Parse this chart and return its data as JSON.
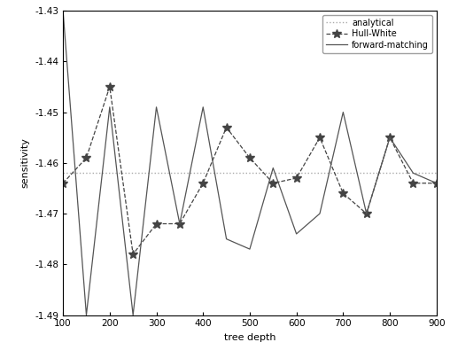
{
  "analytical_value": -1.462,
  "x_hw": [
    100,
    150,
    200,
    250,
    300,
    350,
    400,
    450,
    500,
    550,
    600,
    650,
    700,
    750,
    800,
    850,
    900
  ],
  "y_hw": [
    -1.464,
    -1.459,
    -1.445,
    -1.478,
    -1.472,
    -1.472,
    -1.464,
    -1.453,
    -1.459,
    -1.464,
    -1.463,
    -1.455,
    -1.466,
    -1.47,
    -1.455,
    -1.464,
    -1.464
  ],
  "x_fm": [
    100,
    150,
    200,
    250,
    300,
    350,
    400,
    450,
    500,
    550,
    600,
    650,
    700,
    750,
    800,
    850,
    900
  ],
  "y_fm": [
    -1.43,
    -1.49,
    -1.449,
    -1.49,
    -1.449,
    -1.472,
    -1.449,
    -1.475,
    -1.477,
    -1.461,
    -1.474,
    -1.47,
    -1.45,
    -1.47,
    -1.455,
    -1.462,
    -1.464
  ],
  "xlabel": "tree depth",
  "ylabel": "sensitivity",
  "xlim": [
    100,
    900
  ],
  "ylim": [
    -1.49,
    -1.43
  ],
  "xticks": [
    100,
    200,
    300,
    400,
    500,
    600,
    700,
    800,
    900
  ],
  "yticks": [
    -1.49,
    -1.48,
    -1.47,
    -1.46,
    -1.45,
    -1.44,
    -1.43
  ],
  "legend_labels": [
    "analytical",
    "Hull-White",
    "forward-matching"
  ],
  "line_color_hw": "#444444",
  "line_color_fm": "#555555",
  "line_color_analytical": "#aaaaaa",
  "background_color": "#ffffff",
  "figsize": [
    5.08,
    4.04
  ],
  "dpi": 100
}
